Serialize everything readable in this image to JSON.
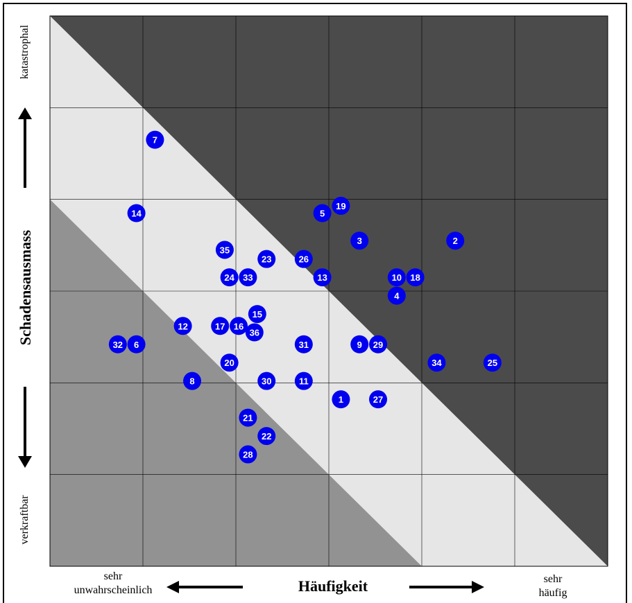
{
  "chart_data": {
    "type": "scatter",
    "title": "",
    "xlabel": "Häufigkeit",
    "ylabel": "Schadensausmass",
    "xlim": [
      0,
      6
    ],
    "ylim": [
      0,
      6
    ],
    "grid": true,
    "x_low_label_line1": "sehr",
    "x_low_label_line2": "unwahrscheinlich",
    "x_high_label_line1": "sehr",
    "x_high_label_line2": "häufig",
    "y_low_label": "verkraftbar",
    "y_high_label": "katastrophal",
    "zones": {
      "low_color": "#929292",
      "medium_color": "#e6e6e6",
      "high_color": "#4b4b4b"
    },
    "point_color": "#0000ee",
    "points": [
      {
        "label": "1",
        "x": 3.13,
        "y": 1.82
      },
      {
        "label": "2",
        "x": 4.36,
        "y": 3.55
      },
      {
        "label": "3",
        "x": 3.33,
        "y": 3.55
      },
      {
        "label": "4",
        "x": 3.73,
        "y": 2.95
      },
      {
        "label": "5",
        "x": 2.93,
        "y": 3.85
      },
      {
        "label": "6",
        "x": 0.93,
        "y": 2.42
      },
      {
        "label": "7",
        "x": 1.13,
        "y": 4.65
      },
      {
        "label": "8",
        "x": 1.53,
        "y": 2.02
      },
      {
        "label": "9",
        "x": 3.33,
        "y": 2.42
      },
      {
        "label": "10",
        "x": 3.73,
        "y": 3.15
      },
      {
        "label": "11",
        "x": 2.73,
        "y": 2.02
      },
      {
        "label": "12",
        "x": 1.43,
        "y": 2.62
      },
      {
        "label": "13",
        "x": 2.93,
        "y": 3.15
      },
      {
        "label": "14",
        "x": 0.93,
        "y": 3.85
      },
      {
        "label": "15",
        "x": 2.23,
        "y": 2.75
      },
      {
        "label": "16",
        "x": 2.03,
        "y": 2.62
      },
      {
        "label": "17",
        "x": 1.83,
        "y": 2.62
      },
      {
        "label": "18",
        "x": 3.93,
        "y": 3.15
      },
      {
        "label": "19",
        "x": 3.13,
        "y": 3.93
      },
      {
        "label": "20",
        "x": 1.93,
        "y": 2.22
      },
      {
        "label": "21",
        "x": 2.13,
        "y": 1.62
      },
      {
        "label": "22",
        "x": 2.33,
        "y": 1.42
      },
      {
        "label": "23",
        "x": 2.33,
        "y": 3.35
      },
      {
        "label": "24",
        "x": 1.93,
        "y": 3.15
      },
      {
        "label": "25",
        "x": 4.76,
        "y": 2.22
      },
      {
        "label": "26",
        "x": 2.73,
        "y": 3.35
      },
      {
        "label": "27",
        "x": 3.53,
        "y": 1.82
      },
      {
        "label": "28",
        "x": 2.13,
        "y": 1.22
      },
      {
        "label": "29",
        "x": 3.53,
        "y": 2.42
      },
      {
        "label": "30",
        "x": 2.33,
        "y": 2.02
      },
      {
        "label": "31",
        "x": 2.73,
        "y": 2.42
      },
      {
        "label": "32",
        "x": 0.73,
        "y": 2.42
      },
      {
        "label": "33",
        "x": 2.13,
        "y": 3.15
      },
      {
        "label": "34",
        "x": 4.16,
        "y": 2.22
      },
      {
        "label": "35",
        "x": 1.88,
        "y": 3.45
      },
      {
        "label": "36",
        "x": 2.2,
        "y": 2.55
      }
    ]
  }
}
